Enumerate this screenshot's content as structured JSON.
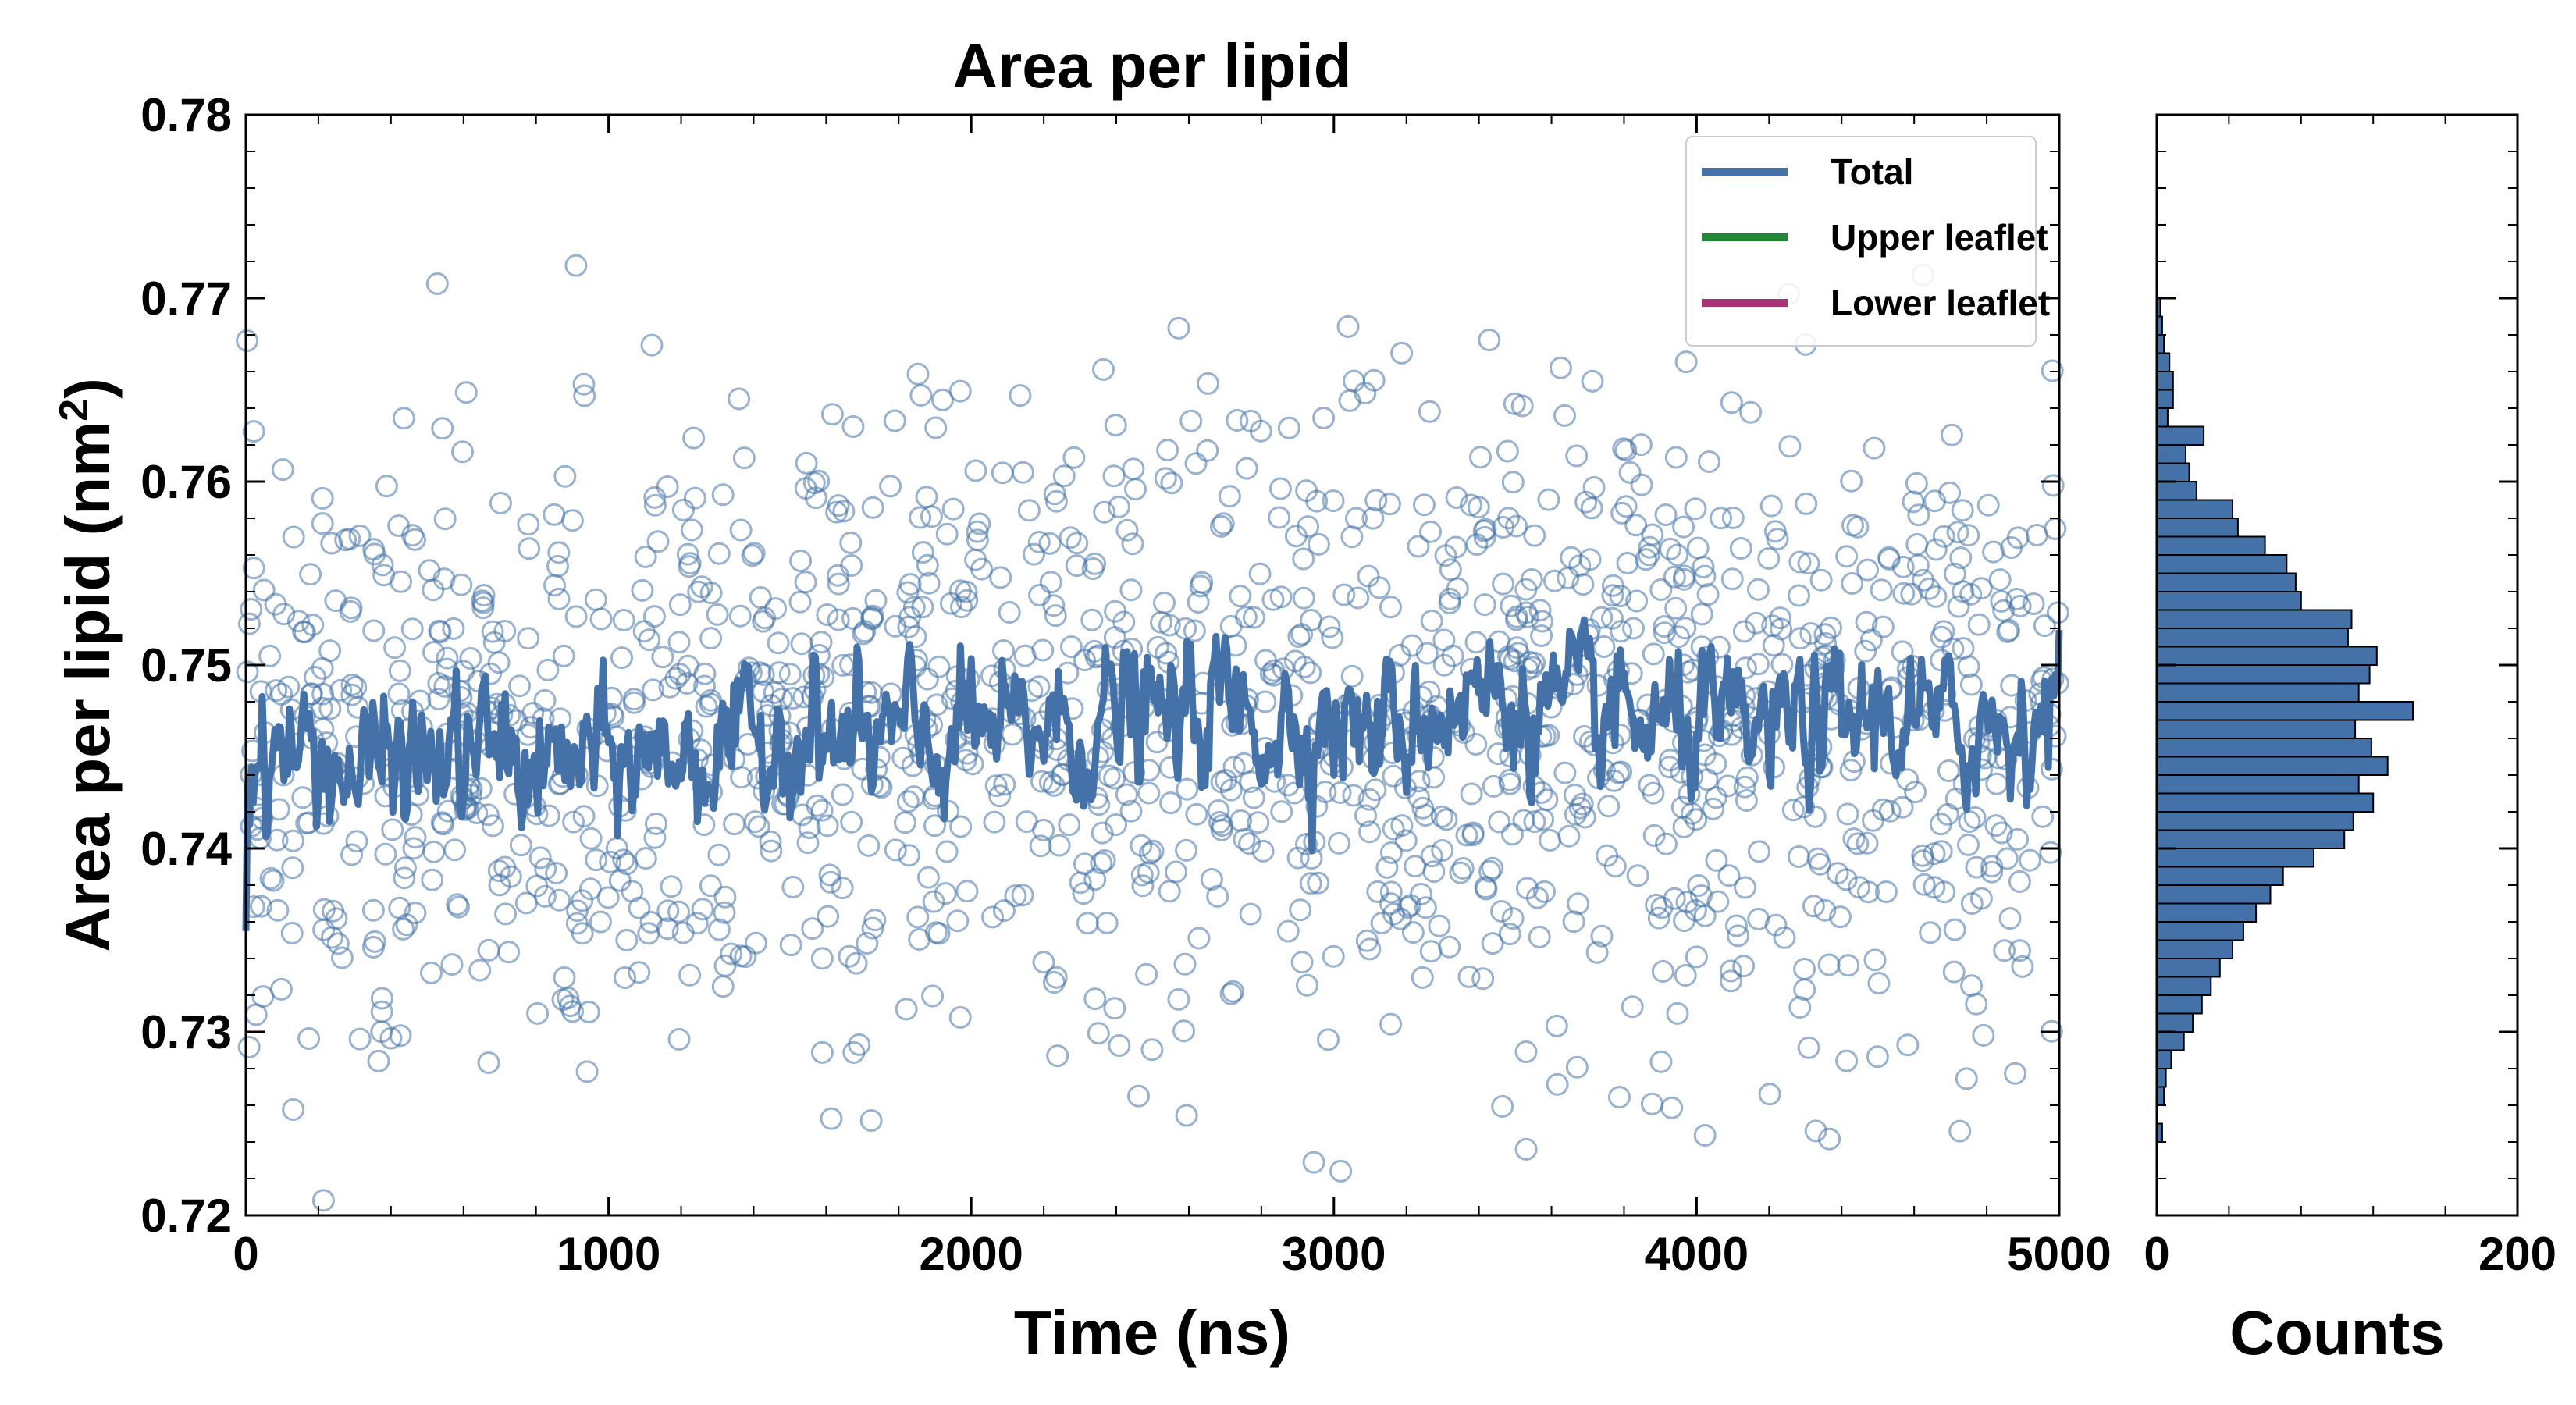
{
  "chart_data": [
    {
      "type": "line",
      "title": "Area per lipid",
      "xlabel": "Time (ns)",
      "ylabel": "Area per lipid (nm",
      "ylabel_sup": "2",
      "ylabel_close": ")",
      "xlim": [
        0,
        5000
      ],
      "ylim": [
        0.72,
        0.78
      ],
      "xticks": [
        0,
        1000,
        2000,
        3000,
        4000,
        5000
      ],
      "xtick_labels": [
        "0",
        "1000",
        "2000",
        "3000",
        "4000",
        "5000"
      ],
      "yticks": [
        0.72,
        0.73,
        0.74,
        0.75,
        0.76,
        0.77,
        0.78
      ],
      "ytick_labels": [
        "0.72",
        "0.73",
        "0.74",
        "0.75",
        "0.76",
        "0.77",
        "0.78"
      ],
      "grid": false,
      "legend_position": "top-right",
      "legend": [
        {
          "name": "Total",
          "color": "#4472a8"
        },
        {
          "name": "Upper leaflet",
          "color": "#228833"
        },
        {
          "name": "Lower leaflet",
          "color": "#aa3377"
        }
      ],
      "scatter_color": "#4472a8",
      "series": [
        {
          "name": "Total",
          "type": "line",
          "color": "#4472a8",
          "x": [
            0,
            100,
            200,
            300,
            400,
            500,
            600,
            700,
            800,
            900,
            1000,
            1100,
            1200,
            1300,
            1400,
            1500,
            1600,
            1700,
            1800,
            1900,
            2000,
            2100,
            2200,
            2300,
            2400,
            2500,
            2600,
            2700,
            2800,
            2900,
            3000,
            3100,
            3200,
            3300,
            3400,
            3500,
            3600,
            3700,
            3800,
            3900,
            4000,
            4100,
            4200,
            4300,
            4400,
            4500,
            4600,
            4700,
            4800,
            4900,
            5000
          ],
          "y": [
            0.7445,
            0.7455,
            0.745,
            0.744,
            0.745,
            0.7445,
            0.7452,
            0.7455,
            0.744,
            0.745,
            0.7445,
            0.7448,
            0.7455,
            0.745,
            0.7455,
            0.7465,
            0.7458,
            0.7455,
            0.7462,
            0.7452,
            0.7468,
            0.7458,
            0.747,
            0.7462,
            0.7475,
            0.747,
            0.7472,
            0.748,
            0.7468,
            0.747,
            0.7472,
            0.7462,
            0.7468,
            0.7478,
            0.7485,
            0.748,
            0.7475,
            0.7472,
            0.747,
            0.7462,
            0.7468,
            0.746,
            0.7462,
            0.747,
            0.7465,
            0.7475,
            0.747,
            0.7462,
            0.7468,
            0.747,
            0.748
          ]
        }
      ],
      "scatter_summary": {
        "count": 1500,
        "x_range": [
          0,
          5000
        ],
        "center": 0.7455,
        "spread": 0.0085
      }
    },
    {
      "type": "bar",
      "orientation": "horizontal",
      "xlabel": "Counts",
      "xlim": [
        0,
        200
      ],
      "xticks": [
        0,
        200
      ],
      "xtick_labels": [
        "0",
        "200"
      ],
      "ylim": [
        0.72,
        0.78
      ],
      "bin_width": 0.001,
      "bar_color": "#4472a8",
      "bins": [
        0.724,
        0.726,
        0.727,
        0.728,
        0.729,
        0.73,
        0.731,
        0.732,
        0.733,
        0.734,
        0.735,
        0.736,
        0.737,
        0.738,
        0.739,
        0.74,
        0.741,
        0.742,
        0.743,
        0.744,
        0.745,
        0.746,
        0.747,
        0.748,
        0.749,
        0.75,
        0.751,
        0.752,
        0.753,
        0.754,
        0.755,
        0.756,
        0.757,
        0.758,
        0.759,
        0.76,
        0.761,
        0.762,
        0.763,
        0.764,
        0.765,
        0.766,
        0.767,
        0.768,
        0.769
      ],
      "counts": [
        3,
        4,
        5,
        8,
        15,
        20,
        25,
        30,
        35,
        42,
        48,
        55,
        63,
        70,
        87,
        104,
        109,
        120,
        112,
        128,
        119,
        110,
        142,
        112,
        118,
        122,
        106,
        108,
        80,
        77,
        72,
        60,
        45,
        42,
        22,
        18,
        16,
        26,
        6,
        9,
        9,
        7,
        4,
        3,
        2
      ]
    }
  ]
}
